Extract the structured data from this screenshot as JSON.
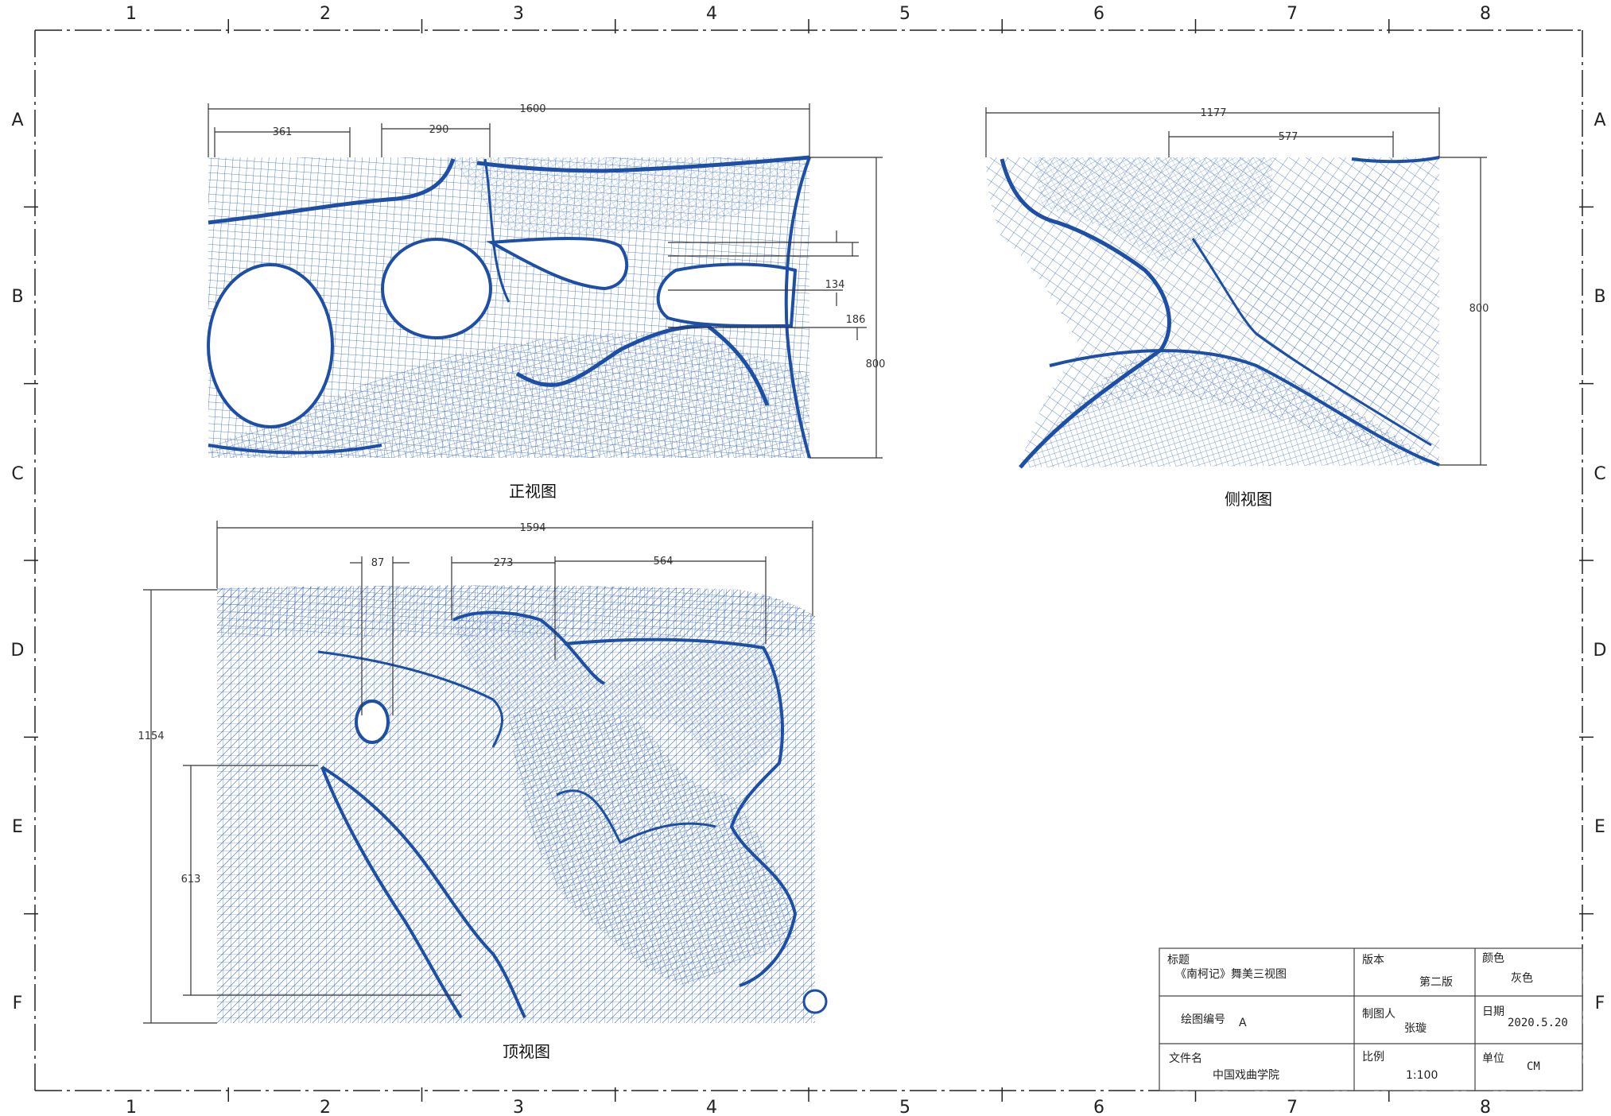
{
  "border": {
    "columns": [
      "1",
      "2",
      "3",
      "4",
      "5",
      "6",
      "7",
      "8"
    ],
    "rows": [
      "A",
      "B",
      "C",
      "D",
      "E",
      "F"
    ]
  },
  "views": {
    "front": {
      "label": "正视图",
      "dims": {
        "width": "1600",
        "d1": "361",
        "d2": "290",
        "height": "800",
        "d3": "134",
        "d4": "186"
      }
    },
    "side": {
      "label": "侧视图",
      "dims": {
        "width": "1177",
        "d1": "577",
        "height": "800"
      }
    },
    "top": {
      "label": "顶视图",
      "dims": {
        "width": "1594",
        "d1": "87",
        "d2": "273",
        "d3": "564",
        "height": "1154",
        "d4": "613"
      }
    }
  },
  "title_block": {
    "title_label": "标题",
    "title_value": "《南柯记》舞美三视图",
    "version_label": "版本",
    "version_value": "第二版",
    "color_label": "颜色",
    "color_value": "灰色",
    "drawing_no_label": "绘图编号",
    "drawing_no_value": "A",
    "drafter_label": "制图人",
    "drafter_value": "张璇",
    "date_label": "日期",
    "date_value": "2020.5.20",
    "file_label": "文件名",
    "file_value": "中国戏曲学院",
    "scale_label": "比例",
    "scale_value": "1:100",
    "unit_label": "单位",
    "unit_value": "CM"
  },
  "colors": {
    "mesh": "#2f63b5",
    "mesh_dark": "#1d4fa6",
    "line": "#222222"
  }
}
